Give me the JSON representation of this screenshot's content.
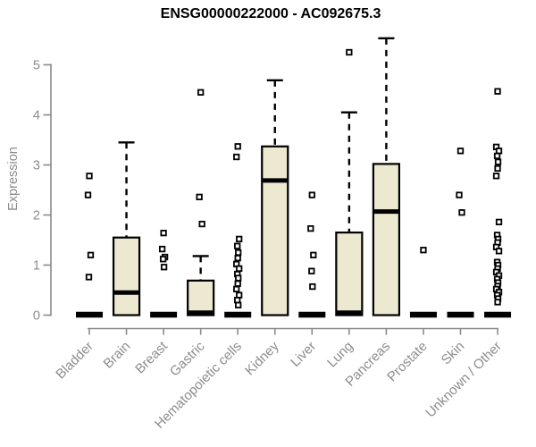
{
  "page": {
    "background": "#ffffff"
  },
  "chart_data": {
    "type": "boxplot",
    "title": "ENSG00000222000 - AC092675.3",
    "xlabel": "",
    "ylabel": "Expression",
    "ylim": [
      0,
      5.6
    ],
    "yticks": [
      0,
      1,
      2,
      3,
      4,
      5
    ],
    "grid": false,
    "legend": "none",
    "categories": [
      "Bladder",
      "Brain",
      "Breast",
      "Gastric",
      "Hematopoietic cells",
      "Kidney",
      "Liver",
      "Lung",
      "Pancreas",
      "Prostate",
      "Skin",
      "Unknown / Other"
    ],
    "series": [
      {
        "category": "Bladder",
        "q1": 0,
        "median": 0,
        "q3": 0,
        "whisker_low": 0,
        "whisker_high": 0,
        "outliers": [
          2.78,
          2.4,
          1.2,
          0.76
        ]
      },
      {
        "category": "Brain",
        "q1": 0,
        "median": 0.45,
        "q3": 1.55,
        "whisker_low": 0,
        "whisker_high": 3.45,
        "outliers": []
      },
      {
        "category": "Breast",
        "q1": 0,
        "median": 0,
        "q3": 0,
        "whisker_low": 0,
        "whisker_high": 0,
        "outliers": [
          1.64,
          1.32,
          1.16,
          1.12,
          0.96
        ]
      },
      {
        "category": "Gastric",
        "q1": 0,
        "median": 0.05,
        "q3": 0.69,
        "whisker_low": 0,
        "whisker_high": 1.18,
        "outliers": [
          4.45,
          2.36,
          1.82
        ]
      },
      {
        "category": "Hematopoietic cells",
        "q1": 0,
        "median": 0,
        "q3": 0,
        "whisker_low": 0,
        "whisker_high": 0,
        "outliers": [
          3.37,
          3.16,
          1.52,
          1.38,
          1.25,
          1.14,
          1.02,
          0.93,
          0.82,
          0.74,
          0.63,
          0.52,
          0.4,
          0.3,
          0.2
        ]
      },
      {
        "category": "Kidney",
        "q1": 0,
        "median": 2.69,
        "q3": 3.37,
        "whisker_low": 0,
        "whisker_high": 4.69,
        "outliers": []
      },
      {
        "category": "Liver",
        "q1": 0,
        "median": 0,
        "q3": 0,
        "whisker_low": 0,
        "whisker_high": 0,
        "outliers": [
          2.4,
          1.73,
          1.2,
          0.88,
          0.57
        ]
      },
      {
        "category": "Lung",
        "q1": 0,
        "median": 0.05,
        "q3": 1.65,
        "whisker_low": 0,
        "whisker_high": 4.05,
        "outliers": [
          5.25
        ]
      },
      {
        "category": "Pancreas",
        "q1": 0,
        "median": 2.07,
        "q3": 3.02,
        "whisker_low": 0,
        "whisker_high": 5.53,
        "outliers": []
      },
      {
        "category": "Prostate",
        "q1": 0,
        "median": 0,
        "q3": 0,
        "whisker_low": 0,
        "whisker_high": 0,
        "outliers": [
          1.3
        ]
      },
      {
        "category": "Skin",
        "q1": 0,
        "median": 0,
        "q3": 0,
        "whisker_low": 0,
        "whisker_high": 0,
        "outliers": [
          3.28,
          2.4,
          2.05
        ]
      },
      {
        "category": "Unknown / Other",
        "q1": 0,
        "median": 0,
        "q3": 0,
        "whisker_low": 0,
        "whisker_high": 0,
        "outliers": [
          4.47,
          3.36,
          3.28,
          3.18,
          3.06,
          2.93,
          2.78,
          1.86,
          1.6,
          1.52,
          1.45,
          1.36,
          1.28,
          1.06,
          1.0,
          0.93,
          0.86,
          0.79,
          0.72,
          0.65,
          0.58,
          0.52,
          0.46,
          0.4,
          0.33,
          0.26
        ]
      }
    ]
  },
  "style": {
    "box_fill": "#ede8d0",
    "box_border": "#000000",
    "median_color": "#000000",
    "whisker_color": "#000000",
    "outlier_stroke": "#000000",
    "outlier_fill": "#ffffff",
    "axis_color": "#8a8a8a",
    "axis_text_color": "#8c8c8c",
    "title_color": "#000000",
    "background": "#ffffff"
  }
}
